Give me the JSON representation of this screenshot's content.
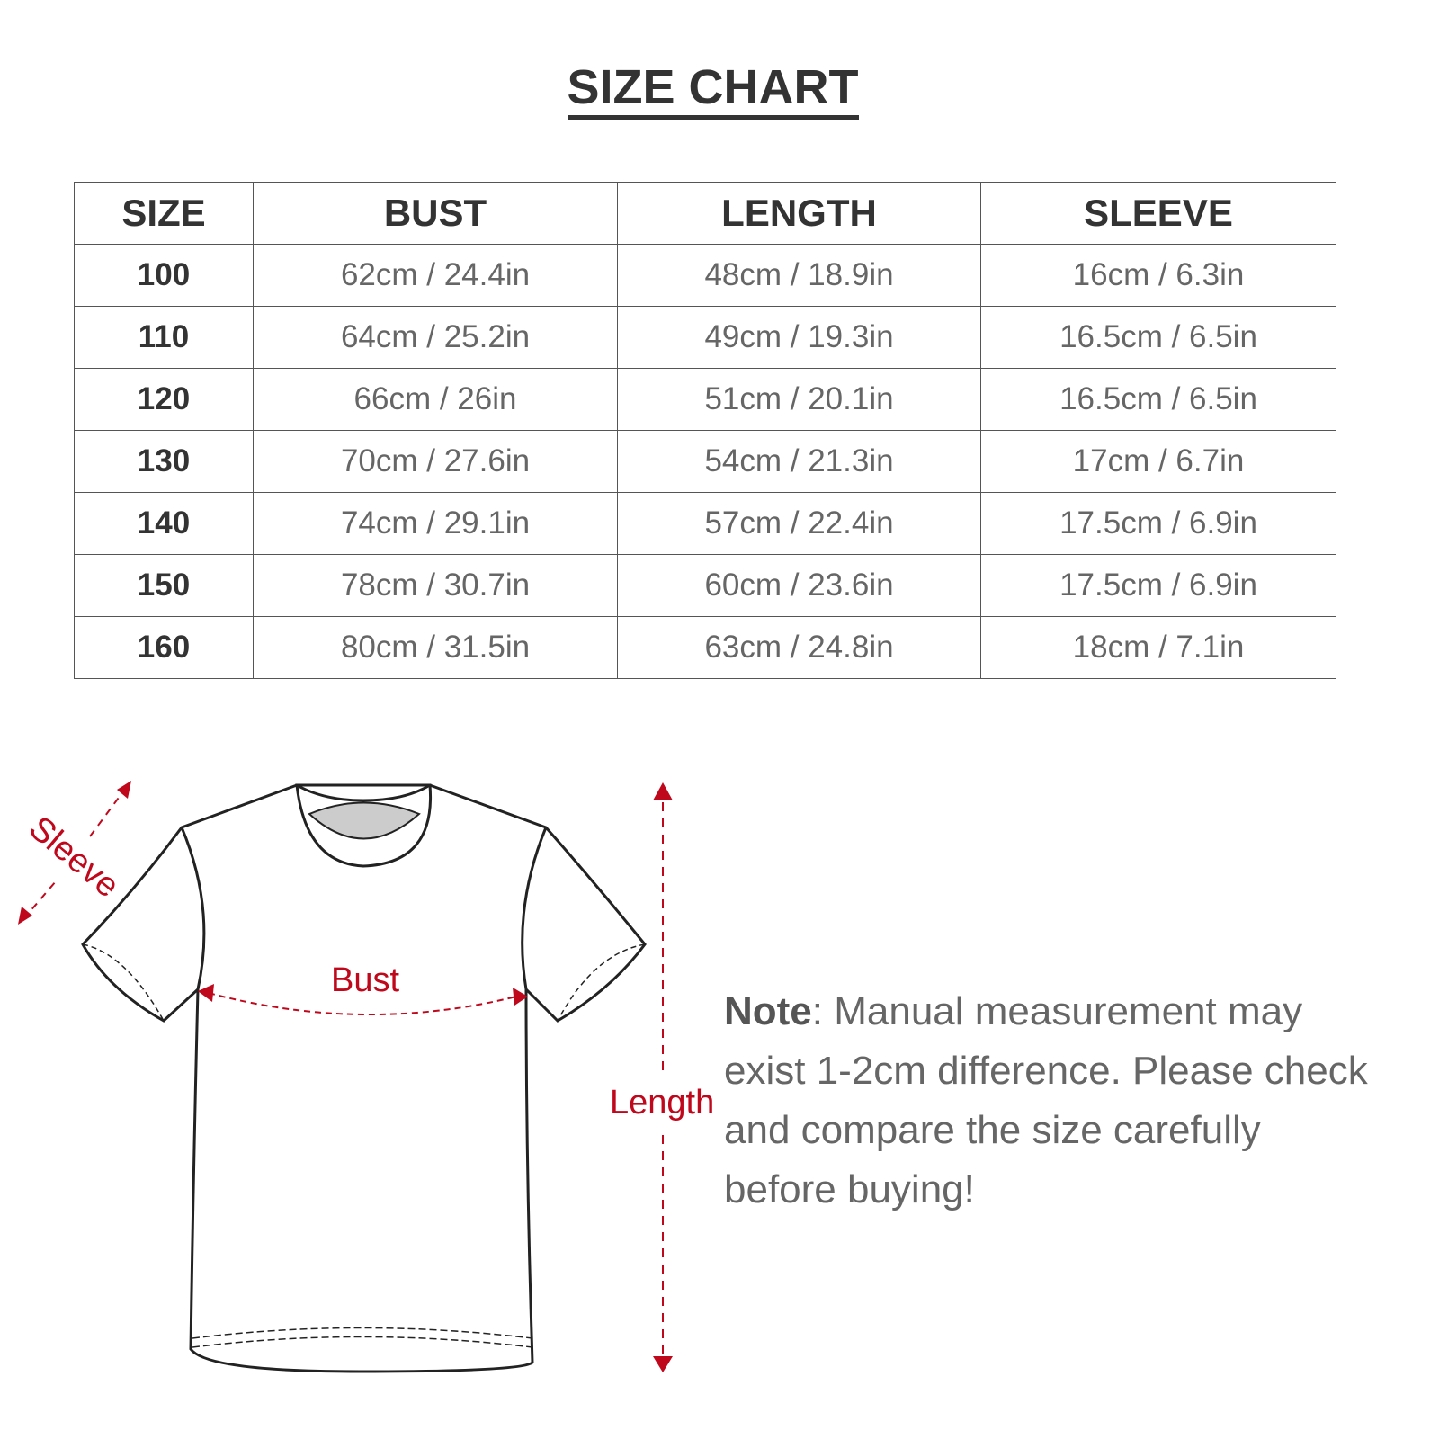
{
  "title": "SIZE CHART",
  "table": {
    "headers": [
      "SIZE",
      "BUST",
      "LENGTH",
      "SLEEVE"
    ],
    "rows": [
      [
        "100",
        "62cm / 24.4in",
        "48cm / 18.9in",
        "16cm / 6.3in"
      ],
      [
        "110",
        "64cm / 25.2in",
        "49cm / 19.3in",
        "16.5cm / 6.5in"
      ],
      [
        "120",
        "66cm / 26in",
        "51cm / 20.1in",
        "16.5cm / 6.5in"
      ],
      [
        "130",
        "70cm / 27.6in",
        "54cm / 21.3in",
        "17cm / 6.7in"
      ],
      [
        "140",
        "74cm / 29.1in",
        "57cm / 22.4in",
        "17.5cm / 6.9in"
      ],
      [
        "150",
        "78cm / 30.7in",
        "60cm / 23.6in",
        "17.5cm / 6.9in"
      ],
      [
        "160",
        "80cm / 31.5in",
        "63cm / 24.8in",
        "18cm / 7.1in"
      ]
    ]
  },
  "diagram": {
    "sleeve_label": "Sleeve",
    "bust_label": "Bust",
    "length_label": "Length",
    "accent_color": "#c0081c"
  },
  "note": {
    "label": "Note",
    "text": ": Manual measurement may exist 1-2cm difference. Please check and compare the size carefully before buying!"
  }
}
